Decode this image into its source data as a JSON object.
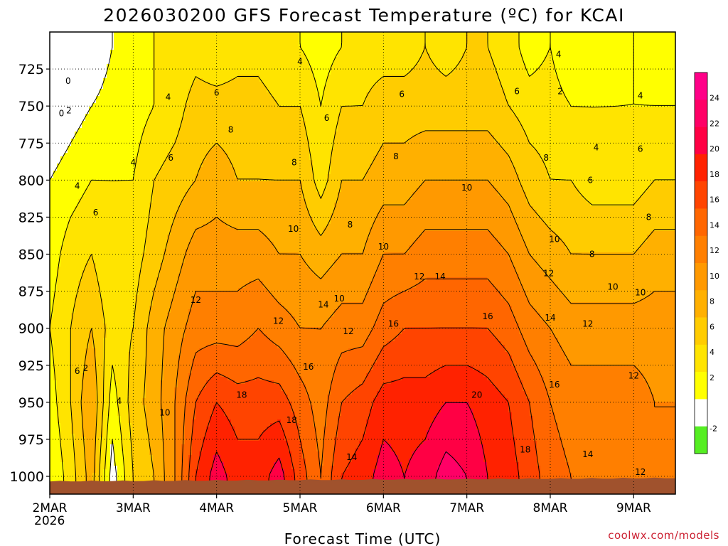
{
  "chart_data": {
    "type": "heatmap",
    "title": "2026030200 GFS Forecast Temperature (ºC) for KCAI",
    "xlabel": "Forecast Time (UTC)",
    "ylabel": "",
    "x_ticks": [
      "2MAR",
      "3MAR",
      "4MAR",
      "5MAR",
      "6MAR",
      "7MAR",
      "8MAR",
      "9MAR"
    ],
    "x_year": "2026",
    "xlim": [
      0,
      7.5
    ],
    "y_ticks": [
      725,
      750,
      775,
      800,
      825,
      850,
      875,
      900,
      925,
      950,
      975,
      1000
    ],
    "ylim": [
      700,
      1012
    ],
    "y_inverted": true,
    "grid": true,
    "colorbar": {
      "ticks": [
        -2,
        2,
        4,
        6,
        8,
        10,
        12,
        14,
        16,
        18,
        20,
        22,
        24
      ],
      "bands": [
        {
          "from": -4,
          "to": -2,
          "color": "#55ee22"
        },
        {
          "from": -2,
          "to": 2,
          "color": "#ffffff"
        },
        {
          "from": 2,
          "to": 4,
          "color": "#ffff00"
        },
        {
          "from": 4,
          "to": 6,
          "color": "#ffe400"
        },
        {
          "from": 6,
          "to": 8,
          "color": "#ffcc00"
        },
        {
          "from": 8,
          "to": 10,
          "color": "#ffb000"
        },
        {
          "from": 10,
          "to": 12,
          "color": "#ff9900"
        },
        {
          "from": 12,
          "to": 14,
          "color": "#ff7f00"
        },
        {
          "from": 14,
          "to": 16,
          "color": "#ff6600"
        },
        {
          "from": 16,
          "to": 18,
          "color": "#ff4400"
        },
        {
          "from": 18,
          "to": 20,
          "color": "#ff2200"
        },
        {
          "from": 20,
          "to": 22,
          "color": "#ff0044"
        },
        {
          "from": 22,
          "to": 24,
          "color": "#ff0066"
        },
        {
          "from": 24,
          "to": 26,
          "color": "#ff0088"
        }
      ]
    },
    "temperature_at_pressure": {
      "x_days": [
        0,
        0.25,
        0.5,
        0.75,
        1.0,
        1.25,
        1.5,
        1.75,
        2.0,
        2.25,
        2.5,
        2.75,
        3.0,
        3.25,
        3.5,
        3.75,
        4.0,
        4.25,
        4.5,
        4.75,
        5.0,
        5.25,
        5.5,
        5.75,
        6.0,
        6.25,
        6.5,
        6.75,
        7.0,
        7.25,
        7.5
      ],
      "levels": [
        {
          "p": 710,
          "t": [
            0,
            0,
            0,
            2,
            2,
            4,
            4,
            5,
            4,
            5,
            5,
            4,
            4,
            3,
            4,
            5,
            5,
            5,
            6,
            5,
            6,
            6,
            5,
            3,
            4,
            2,
            2,
            3,
            4,
            3,
            3
          ]
        },
        {
          "p": 750,
          "t": [
            0,
            1,
            2,
            3,
            3,
            4,
            5,
            7,
            7,
            7,
            7,
            6,
            6,
            4,
            6,
            6,
            7,
            7,
            7,
            7,
            7,
            7,
            6,
            5,
            5,
            4,
            4,
            4,
            4,
            4,
            4
          ]
        },
        {
          "p": 800,
          "t": [
            2,
            3,
            4,
            4,
            4,
            6,
            7,
            8,
            9,
            8,
            8,
            8,
            8,
            5,
            8,
            8,
            9,
            9,
            10,
            10,
            10,
            10,
            9,
            7,
            6,
            6,
            5,
            5,
            5,
            6,
            6
          ]
        },
        {
          "p": 850,
          "t": [
            3,
            5,
            6,
            4,
            5,
            7,
            9,
            11,
            11,
            11,
            11,
            10,
            10,
            9,
            10,
            10,
            12,
            12,
            13,
            13,
            13,
            13,
            12,
            10,
            9,
            8,
            8,
            8,
            8,
            9,
            9
          ]
        },
        {
          "p": 900,
          "t": [
            4,
            6,
            8,
            5,
            6,
            9,
            11,
            13,
            13,
            13,
            14,
            13,
            12,
            12,
            13,
            13,
            15,
            16,
            16,
            16,
            16,
            16,
            15,
            13,
            12,
            11,
            11,
            11,
            11,
            11,
            11
          ]
        },
        {
          "p": 950,
          "t": [
            3,
            6,
            10,
            3,
            7,
            9,
            12,
            16,
            18,
            17,
            17,
            17,
            15,
            13,
            16,
            17,
            19,
            19,
            19,
            20,
            20,
            19,
            18,
            16,
            14,
            13,
            13,
            13,
            13,
            12,
            12
          ]
        },
        {
          "p": 1000,
          "t": [
            2,
            5,
            9,
            1,
            6,
            8,
            12,
            18,
            21,
            19,
            19,
            21,
            17,
            14,
            18,
            19,
            21,
            20,
            21,
            23,
            22,
            20,
            19,
            17,
            15,
            14,
            13,
            13,
            13,
            12,
            12
          ]
        }
      ]
    },
    "contour_labels": [
      {
        "x": 0.22,
        "p": 733,
        "text": "0"
      },
      {
        "x": 0.14,
        "p": 755,
        "text": "0"
      },
      {
        "x": 0.23,
        "p": 753,
        "text": "2"
      },
      {
        "x": 0.33,
        "p": 804,
        "text": "4"
      },
      {
        "x": 0.55,
        "p": 822,
        "text": "6"
      },
      {
        "x": 0.33,
        "p": 929,
        "text": "6"
      },
      {
        "x": 0.43,
        "p": 927,
        "text": "2"
      },
      {
        "x": 0.83,
        "p": 949,
        "text": "4"
      },
      {
        "x": 1.0,
        "p": 788,
        "text": "4"
      },
      {
        "x": 1.42,
        "p": 744,
        "text": "4"
      },
      {
        "x": 1.45,
        "p": 785,
        "text": "6"
      },
      {
        "x": 1.38,
        "p": 957,
        "text": "10"
      },
      {
        "x": 2.0,
        "p": 741,
        "text": "6"
      },
      {
        "x": 2.17,
        "p": 766,
        "text": "8"
      },
      {
        "x": 1.75,
        "p": 881,
        "text": "12"
      },
      {
        "x": 2.3,
        "p": 945,
        "text": "18"
      },
      {
        "x": 3.0,
        "p": 720,
        "text": "4"
      },
      {
        "x": 3.32,
        "p": 758,
        "text": "6"
      },
      {
        "x": 2.93,
        "p": 788,
        "text": "8"
      },
      {
        "x": 2.92,
        "p": 833,
        "text": "10"
      },
      {
        "x": 2.74,
        "p": 895,
        "text": "12"
      },
      {
        "x": 3.28,
        "p": 884,
        "text": "14"
      },
      {
        "x": 3.1,
        "p": 926,
        "text": "16"
      },
      {
        "x": 2.9,
        "p": 962,
        "text": "18"
      },
      {
        "x": 3.6,
        "p": 830,
        "text": "8"
      },
      {
        "x": 3.47,
        "p": 880,
        "text": "10"
      },
      {
        "x": 3.58,
        "p": 902,
        "text": "12"
      },
      {
        "x": 3.62,
        "p": 987,
        "text": "14"
      },
      {
        "x": 4.15,
        "p": 784,
        "text": "8"
      },
      {
        "x": 4.22,
        "p": 742,
        "text": "6"
      },
      {
        "x": 4.0,
        "p": 845,
        "text": "10"
      },
      {
        "x": 4.43,
        "p": 865,
        "text": "12"
      },
      {
        "x": 4.12,
        "p": 897,
        "text": "16"
      },
      {
        "x": 4.68,
        "p": 865,
        "text": "14"
      },
      {
        "x": 5.12,
        "p": 945,
        "text": "20"
      },
      {
        "x": 5.0,
        "p": 805,
        "text": "10"
      },
      {
        "x": 5.6,
        "p": 740,
        "text": "6"
      },
      {
        "x": 5.95,
        "p": 785,
        "text": "8"
      },
      {
        "x": 5.25,
        "p": 892,
        "text": "16"
      },
      {
        "x": 6.05,
        "p": 840,
        "text": "10"
      },
      {
        "x": 5.98,
        "p": 863,
        "text": "12"
      },
      {
        "x": 6.0,
        "p": 893,
        "text": "14"
      },
      {
        "x": 6.05,
        "p": 938,
        "text": "16"
      },
      {
        "x": 5.7,
        "p": 982,
        "text": "18"
      },
      {
        "x": 6.1,
        "p": 715,
        "text": "4"
      },
      {
        "x": 6.12,
        "p": 740,
        "text": "2"
      },
      {
        "x": 6.55,
        "p": 778,
        "text": "4"
      },
      {
        "x": 6.48,
        "p": 800,
        "text": "6"
      },
      {
        "x": 6.5,
        "p": 850,
        "text": "8"
      },
      {
        "x": 6.75,
        "p": 872,
        "text": "10"
      },
      {
        "x": 6.45,
        "p": 897,
        "text": "12"
      },
      {
        "x": 6.45,
        "p": 985,
        "text": "14"
      },
      {
        "x": 7.08,
        "p": 743,
        "text": "4"
      },
      {
        "x": 7.08,
        "p": 779,
        "text": "6"
      },
      {
        "x": 7.18,
        "p": 825,
        "text": "8"
      },
      {
        "x": 7.08,
        "p": 876,
        "text": "10"
      },
      {
        "x": 7.0,
        "p": 932,
        "text": "12"
      },
      {
        "x": 7.08,
        "p": 997,
        "text": "12"
      }
    ]
  },
  "credit": "coolwx.com/models"
}
